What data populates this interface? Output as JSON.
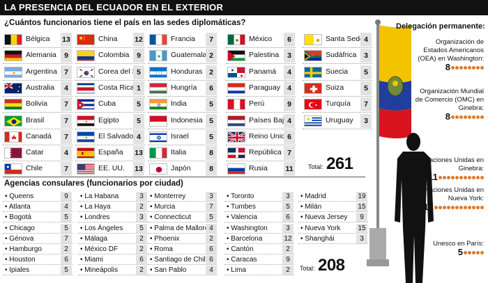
{
  "title": "LA PRESENCIA DEL ECUADOR EN EL EXTERIOR",
  "question": "¿Cuántos funcionarios tiene el país en las sedes diplomáticas?",
  "countries": [
    [
      {
        "name": "Bélgica",
        "value": "13"
      },
      {
        "name": "Alemania",
        "value": "9"
      },
      {
        "name": "Argentina",
        "value": "7"
      },
      {
        "name": "Australia",
        "value": "4"
      },
      {
        "name": "Bolivia",
        "value": "7"
      },
      {
        "name": "Brasil",
        "value": "7"
      },
      {
        "name": "Canadá",
        "value": "7"
      },
      {
        "name": "Catar",
        "value": "4"
      },
      {
        "name": "Chile",
        "value": "7"
      }
    ],
    [
      {
        "name": "China",
        "value": "12"
      },
      {
        "name": "Colombia",
        "value": "9"
      },
      {
        "name": "Corea del Sur",
        "value": "5"
      },
      {
        "name": "Costa Rica",
        "value": "1"
      },
      {
        "name": "Cuba",
        "value": "5"
      },
      {
        "name": "Egipto",
        "value": "5"
      },
      {
        "name": "El Salvador",
        "value": "4"
      },
      {
        "name": "España",
        "value": "13"
      },
      {
        "name": "EE. UU.",
        "value": "13"
      }
    ],
    [
      {
        "name": "Francia",
        "value": "7"
      },
      {
        "name": "Guatemala",
        "value": "2"
      },
      {
        "name": "Honduras",
        "value": "2"
      },
      {
        "name": "Hungría",
        "value": "6"
      },
      {
        "name": "India",
        "value": "5"
      },
      {
        "name": "Indonesia",
        "value": "5"
      },
      {
        "name": "Israel",
        "value": "5"
      },
      {
        "name": "Italia",
        "value": "8"
      },
      {
        "name": "Japón",
        "value": "8"
      }
    ],
    [
      {
        "name": "México",
        "value": "6"
      },
      {
        "name": "Palestina",
        "value": "3"
      },
      {
        "name": "Panamá",
        "value": "4"
      },
      {
        "name": "Paraguay",
        "value": "4"
      },
      {
        "name": "Perú",
        "value": "9"
      },
      {
        "name": "Países Bajos",
        "value": "4"
      },
      {
        "name": "Reino Unido",
        "value": "6"
      },
      {
        "name": "República D.",
        "value": "7"
      },
      {
        "name": "Rusia",
        "value": "11"
      }
    ],
    [
      {
        "name": "Santa Sede",
        "value": "4"
      },
      {
        "name": "Sudáfrica",
        "value": "3"
      },
      {
        "name": "Suecia",
        "value": "5"
      },
      {
        "name": "Suiza",
        "value": "5"
      },
      {
        "name": "Turquía",
        "value": "7"
      },
      {
        "name": "Uruguay",
        "value": "3"
      }
    ]
  ],
  "total_label": "Total:",
  "total_diplomatic": "261",
  "agencias_title": "Agencias consulares (funcionarios por ciudad)",
  "consulates": [
    [
      {
        "name": "• Queens",
        "value": "9"
      },
      {
        "name": "• Atlanta",
        "value": "4"
      },
      {
        "name": "• Bogotá",
        "value": "5"
      },
      {
        "name": "• Chicago",
        "value": "5"
      },
      {
        "name": "• Génova",
        "value": "7"
      },
      {
        "name": "• Hamburgo",
        "value": "2"
      },
      {
        "name": "• Houston",
        "value": "6"
      },
      {
        "name": "• Ipiales",
        "value": "5"
      }
    ],
    [
      {
        "name": "• La Habana",
        "value": "3"
      },
      {
        "name": "• La Haya",
        "value": "2"
      },
      {
        "name": "• Londres",
        "value": "3"
      },
      {
        "name": "• Los Ángeles",
        "value": "5"
      },
      {
        "name": "• Málaga",
        "value": "2"
      },
      {
        "name": "• México DF",
        "value": "2"
      },
      {
        "name": "• Miami",
        "value": "6"
      },
      {
        "name": "• Mineápolis",
        "value": "2"
      }
    ],
    [
      {
        "name": "• Monterrey",
        "value": "3"
      },
      {
        "name": "• Murcia",
        "value": "7"
      },
      {
        "name": "• Connecticut",
        "value": "5"
      },
      {
        "name": "• Palma de Mallorca",
        "value": "4"
      },
      {
        "name": "• Phoenix",
        "value": "2"
      },
      {
        "name": "• Roma",
        "value": "6"
      },
      {
        "name": "• Santiago de Chile",
        "value": "6"
      },
      {
        "name": "• San Pablo",
        "value": "4"
      }
    ],
    [
      {
        "name": "• Toronto",
        "value": "3"
      },
      {
        "name": "• Tumbes",
        "value": "5"
      },
      {
        "name": "• Valencia",
        "value": "6"
      },
      {
        "name": "• Washington",
        "value": "3"
      },
      {
        "name": "• Barcelona",
        "value": "12"
      },
      {
        "name": "• Cantón",
        "value": "2"
      },
      {
        "name": "• Caracas",
        "value": "9"
      },
      {
        "name": "• Lima",
        "value": "2"
      }
    ],
    [
      {
        "name": "• Madrid",
        "value": "19"
      },
      {
        "name": "• Milán",
        "value": "15"
      },
      {
        "name": "• Nueva Jersey",
        "value": "9"
      },
      {
        "name": "• Nueva York",
        "value": "15"
      },
      {
        "name": "• Shanghái",
        "value": "3"
      }
    ]
  ],
  "total_consular": "208",
  "delegacion": {
    "title": "Delegación permanente:",
    "orgs": [
      {
        "label": "Organización de Estados Americanos (OEA) en Washington:",
        "value": "8",
        "dots": 8
      },
      {
        "label": "Organización Mundial de Comercio (OMC) en Ginebra:",
        "value": "8",
        "dots": 8
      },
      {
        "label": "Naciones Unidas en Ginebra:",
        "value": "11",
        "dots": 11
      },
      {
        "label": "Naciones Unidas en Nueva York:",
        "value": "12",
        "dots": 12
      },
      {
        "label": "Unesco en París:",
        "value": "5",
        "dots": 5
      }
    ]
  },
  "colors": {
    "accent_dots": "#e07a2a",
    "title_bg": "#111111",
    "value_bg": "#e2e2e2"
  }
}
